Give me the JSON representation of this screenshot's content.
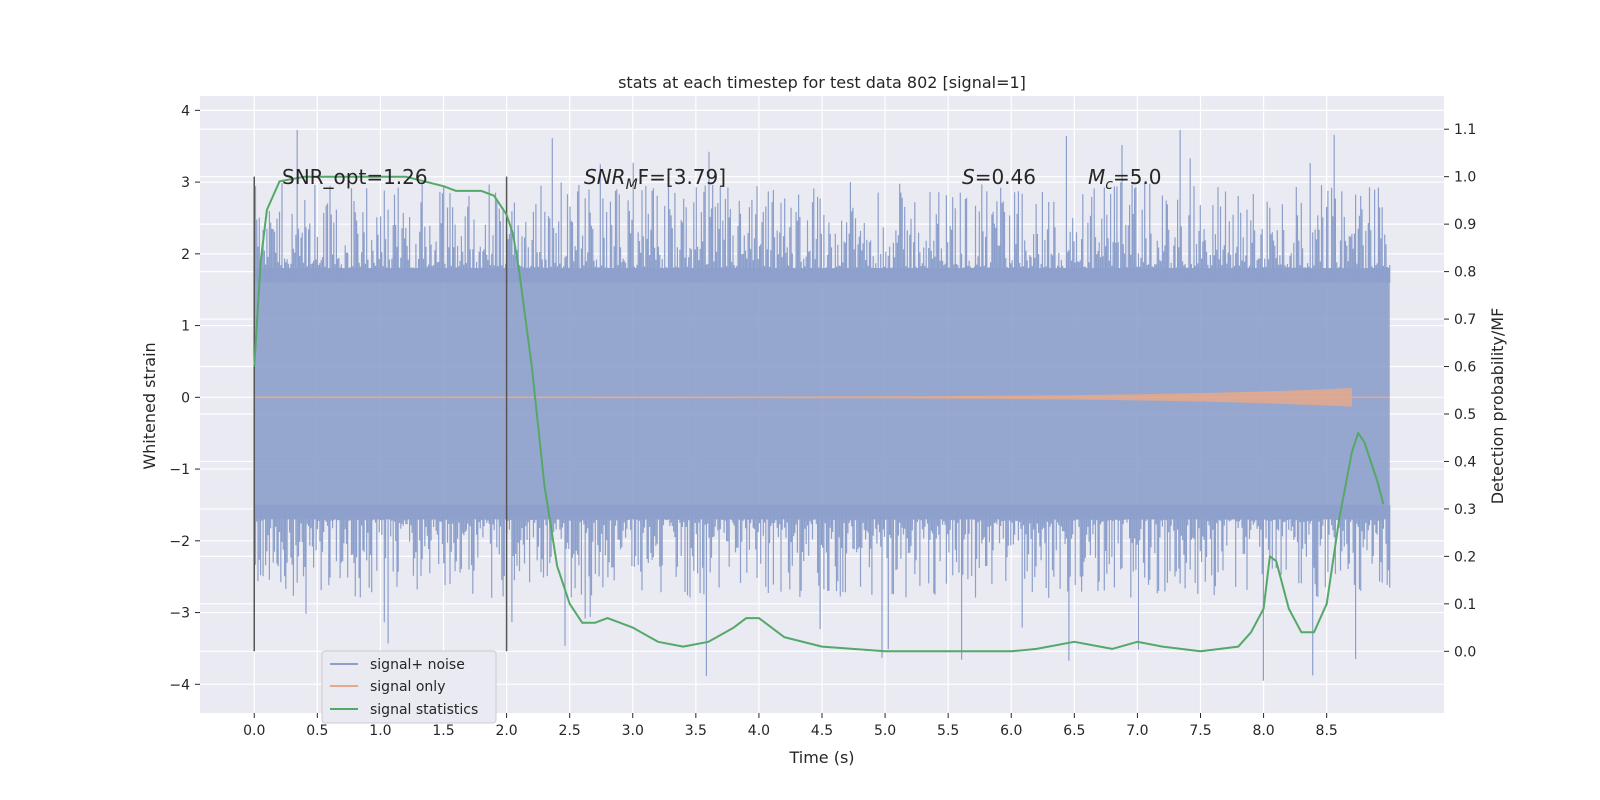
{
  "chart_data": {
    "type": "line",
    "title": "stats at each timestep for test data 802 [signal=1]",
    "xlabel": "Time (s)",
    "ylabel": "Whitened strain",
    "y2label": "Detection probability/MF",
    "xlim": [
      -0.43,
      9.43
    ],
    "ylim": [
      -4.4,
      4.2
    ],
    "y2lim": [
      -0.13,
      1.17
    ],
    "xticks": [
      "0.0",
      "0.5",
      "1.0",
      "1.5",
      "2.0",
      "2.5",
      "3.0",
      "3.5",
      "4.0",
      "4.5",
      "5.0",
      "5.5",
      "6.0",
      "6.5",
      "7.0",
      "7.5",
      "8.0",
      "8.5"
    ],
    "yticks": [
      "4",
      "3",
      "2",
      "1",
      "0",
      "−1",
      "−2",
      "−3",
      "−4"
    ],
    "y2ticks": [
      "1.1",
      "1.0",
      "0.9",
      "0.8",
      "0.7",
      "0.6",
      "0.5",
      "0.4",
      "0.3",
      "0.2",
      "0.1",
      "0.0"
    ],
    "grid": true,
    "legend_placement": "lower-left",
    "colors": {
      "noise": "#8da0cb",
      "signal": "#e5a98b",
      "stats": "#55a868",
      "marker": "#555555",
      "background": "#eaeaf2",
      "grid": "#ffffff"
    },
    "annotations": {
      "snr_opt": "SNR_opt=1.26",
      "snr_mf_prefix": "SNR",
      "snr_mf_sub": "M",
      "snr_mf_suffix": "F=[3.79]",
      "spin": "S",
      "spin_value": "=0.46",
      "mchirp": "M",
      "mchirp_sub": "c",
      "mchirp_value": "=5.0"
    },
    "vertical_markers_x": [
      0.0,
      2.0
    ],
    "series": [
      {
        "name": "signal+ noise",
        "kind": "noise-band",
        "x_range": [
          0.0,
          9.0
        ],
        "envelope": [
          1.8,
          -1.7
        ],
        "extremes": [
          3.85,
          -4.0
        ]
      },
      {
        "name": "signal only",
        "kind": "chirp",
        "x_range": [
          0.0,
          8.7
        ],
        "max_amplitude": 0.12
      },
      {
        "name": "signal statistics",
        "kind": "line",
        "axis": "right",
        "x": [
          0.0,
          0.05,
          0.1,
          0.2,
          0.4,
          0.8,
          1.2,
          1.5,
          1.6,
          1.8,
          1.9,
          1.95,
          2.0,
          2.05,
          2.1,
          2.2,
          2.3,
          2.4,
          2.5,
          2.6,
          2.7,
          2.8,
          3.0,
          3.2,
          3.4,
          3.6,
          3.8,
          3.9,
          4.0,
          4.2,
          4.5,
          5.0,
          5.5,
          6.0,
          6.2,
          6.5,
          6.8,
          7.0,
          7.2,
          7.5,
          7.8,
          7.9,
          8.0,
          8.05,
          8.1,
          8.2,
          8.3,
          8.4,
          8.5,
          8.6,
          8.7,
          8.75,
          8.8,
          8.9,
          8.95
        ],
        "y": [
          0.6,
          0.82,
          0.93,
          0.99,
          1.0,
          1.0,
          1.0,
          0.98,
          0.97,
          0.97,
          0.96,
          0.94,
          0.92,
          0.88,
          0.8,
          0.6,
          0.35,
          0.18,
          0.1,
          0.06,
          0.06,
          0.07,
          0.05,
          0.02,
          0.01,
          0.02,
          0.05,
          0.07,
          0.07,
          0.03,
          0.01,
          0.0,
          0.0,
          0.0,
          0.005,
          0.02,
          0.005,
          0.02,
          0.01,
          0.0,
          0.01,
          0.04,
          0.09,
          0.2,
          0.19,
          0.09,
          0.04,
          0.04,
          0.1,
          0.28,
          0.42,
          0.46,
          0.44,
          0.36,
          0.31
        ]
      }
    ]
  }
}
